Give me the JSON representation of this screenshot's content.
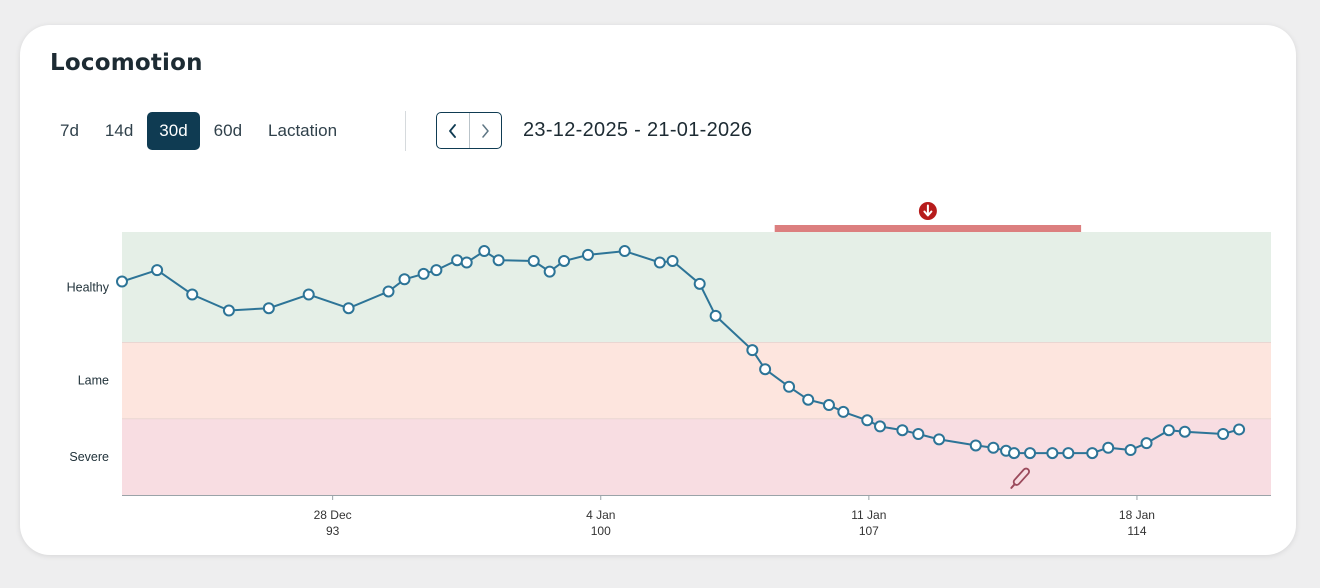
{
  "title": "Locomotion",
  "range_buttons": [
    {
      "label": "7d",
      "active": false
    },
    {
      "label": "14d",
      "active": false
    },
    {
      "label": "30d",
      "active": true
    },
    {
      "label": "60d",
      "active": false
    },
    {
      "label": "Lactation",
      "active": false
    }
  ],
  "date_range": "23-12-2025 - 21-01-2026",
  "icons": {
    "prev": "chevron-left-icon",
    "next": "chevron-right-icon",
    "alert": "arrow-down-circle-icon",
    "edit": "pencil-icon"
  },
  "colors": {
    "accent": "#0f3b52",
    "healthy_zone": "#e5efe7",
    "lame_zone": "#fde5de",
    "severe_zone": "#f8dde2",
    "line": "#2d7497",
    "alert_bar": "#dc7f7f",
    "alert_icon": "#b71c1c"
  },
  "chart_data": {
    "type": "line",
    "title": "Locomotion",
    "xlabel": "",
    "ylabel": "",
    "x_range": [
      "2025-12-22T12:00",
      "2026-01-21T12:00"
    ],
    "x_ticks": [
      {
        "date": "28 Dec",
        "day": "93",
        "x": "2025-12-28"
      },
      {
        "date": "4 Jan",
        "day": "100",
        "x": "2026-01-04"
      },
      {
        "date": "11 Jan",
        "day": "107",
        "x": "2026-01-11"
      },
      {
        "date": "18 Jan",
        "day": "114",
        "x": "2026-01-18"
      }
    ],
    "zones": [
      {
        "label": "Healthy",
        "from": 0,
        "to": 1.45
      },
      {
        "label": "Lame",
        "from": 1.45,
        "to": 2.45
      },
      {
        "label": "Severe",
        "from": 2.45,
        "to": 3.45
      }
    ],
    "ylim": [
      0,
      3.45
    ],
    "alert_period": {
      "start": "2026-01-08T13:00",
      "end": "2026-01-16T13:00"
    },
    "note_marker": {
      "x": "2026-01-15T00:00"
    },
    "series": [
      {
        "points": [
          [
            "2025-12-22T12:00",
            0.65
          ],
          [
            "2025-12-23T10:00",
            0.5
          ],
          [
            "2025-12-24T08:00",
            0.82
          ],
          [
            "2025-12-25T07:00",
            1.03
          ],
          [
            "2025-12-26T08:00",
            1.0
          ],
          [
            "2025-12-27T09:00",
            0.82
          ],
          [
            "2025-12-28T10:00",
            1.0
          ],
          [
            "2025-12-29T11:00",
            0.78
          ],
          [
            "2025-12-29T21:00",
            0.62
          ],
          [
            "2025-12-30T09:00",
            0.55
          ],
          [
            "2025-12-30T17:00",
            0.5
          ],
          [
            "2025-12-31T06:00",
            0.37
          ],
          [
            "2025-12-31T12:00",
            0.4
          ],
          [
            "2025-12-31T23:00",
            0.25
          ],
          [
            "2026-01-01T08:00",
            0.37
          ],
          [
            "2026-01-02T06:00",
            0.38
          ],
          [
            "2026-01-02T16:00",
            0.52
          ],
          [
            "2026-01-03T01:00",
            0.38
          ],
          [
            "2026-01-03T16:00",
            0.3
          ],
          [
            "2026-01-04T15:00",
            0.25
          ],
          [
            "2026-01-05T13:00",
            0.4
          ],
          [
            "2026-01-05T21:00",
            0.38
          ],
          [
            "2026-01-06T14:00",
            0.68
          ],
          [
            "2026-01-07T00:00",
            1.1
          ],
          [
            "2026-01-07T23:00",
            1.55
          ],
          [
            "2026-01-08T07:00",
            1.8
          ],
          [
            "2026-01-08T22:00",
            2.03
          ],
          [
            "2026-01-09T10:00",
            2.2
          ],
          [
            "2026-01-09T23:00",
            2.27
          ],
          [
            "2026-01-10T08:00",
            2.36
          ],
          [
            "2026-01-10T23:00",
            2.47
          ],
          [
            "2026-01-11T07:00",
            2.55
          ],
          [
            "2026-01-11T21:00",
            2.6
          ],
          [
            "2026-01-12T07:00",
            2.65
          ],
          [
            "2026-01-12T20:00",
            2.72
          ],
          [
            "2026-01-13T19:00",
            2.8
          ],
          [
            "2026-01-14T06:00",
            2.83
          ],
          [
            "2026-01-14T14:00",
            2.87
          ],
          [
            "2026-01-14T19:00",
            2.9
          ],
          [
            "2026-01-15T05:00",
            2.9
          ],
          [
            "2026-01-15T19:00",
            2.9
          ],
          [
            "2026-01-16T05:00",
            2.9
          ],
          [
            "2026-01-16T20:00",
            2.9
          ],
          [
            "2026-01-17T06:00",
            2.83
          ],
          [
            "2026-01-17T20:00",
            2.86
          ],
          [
            "2026-01-18T06:00",
            2.77
          ],
          [
            "2026-01-18T20:00",
            2.6
          ],
          [
            "2026-01-19T06:00",
            2.62
          ],
          [
            "2026-01-20T06:00",
            2.65
          ],
          [
            "2026-01-20T16:00",
            2.59
          ]
        ]
      }
    ]
  }
}
